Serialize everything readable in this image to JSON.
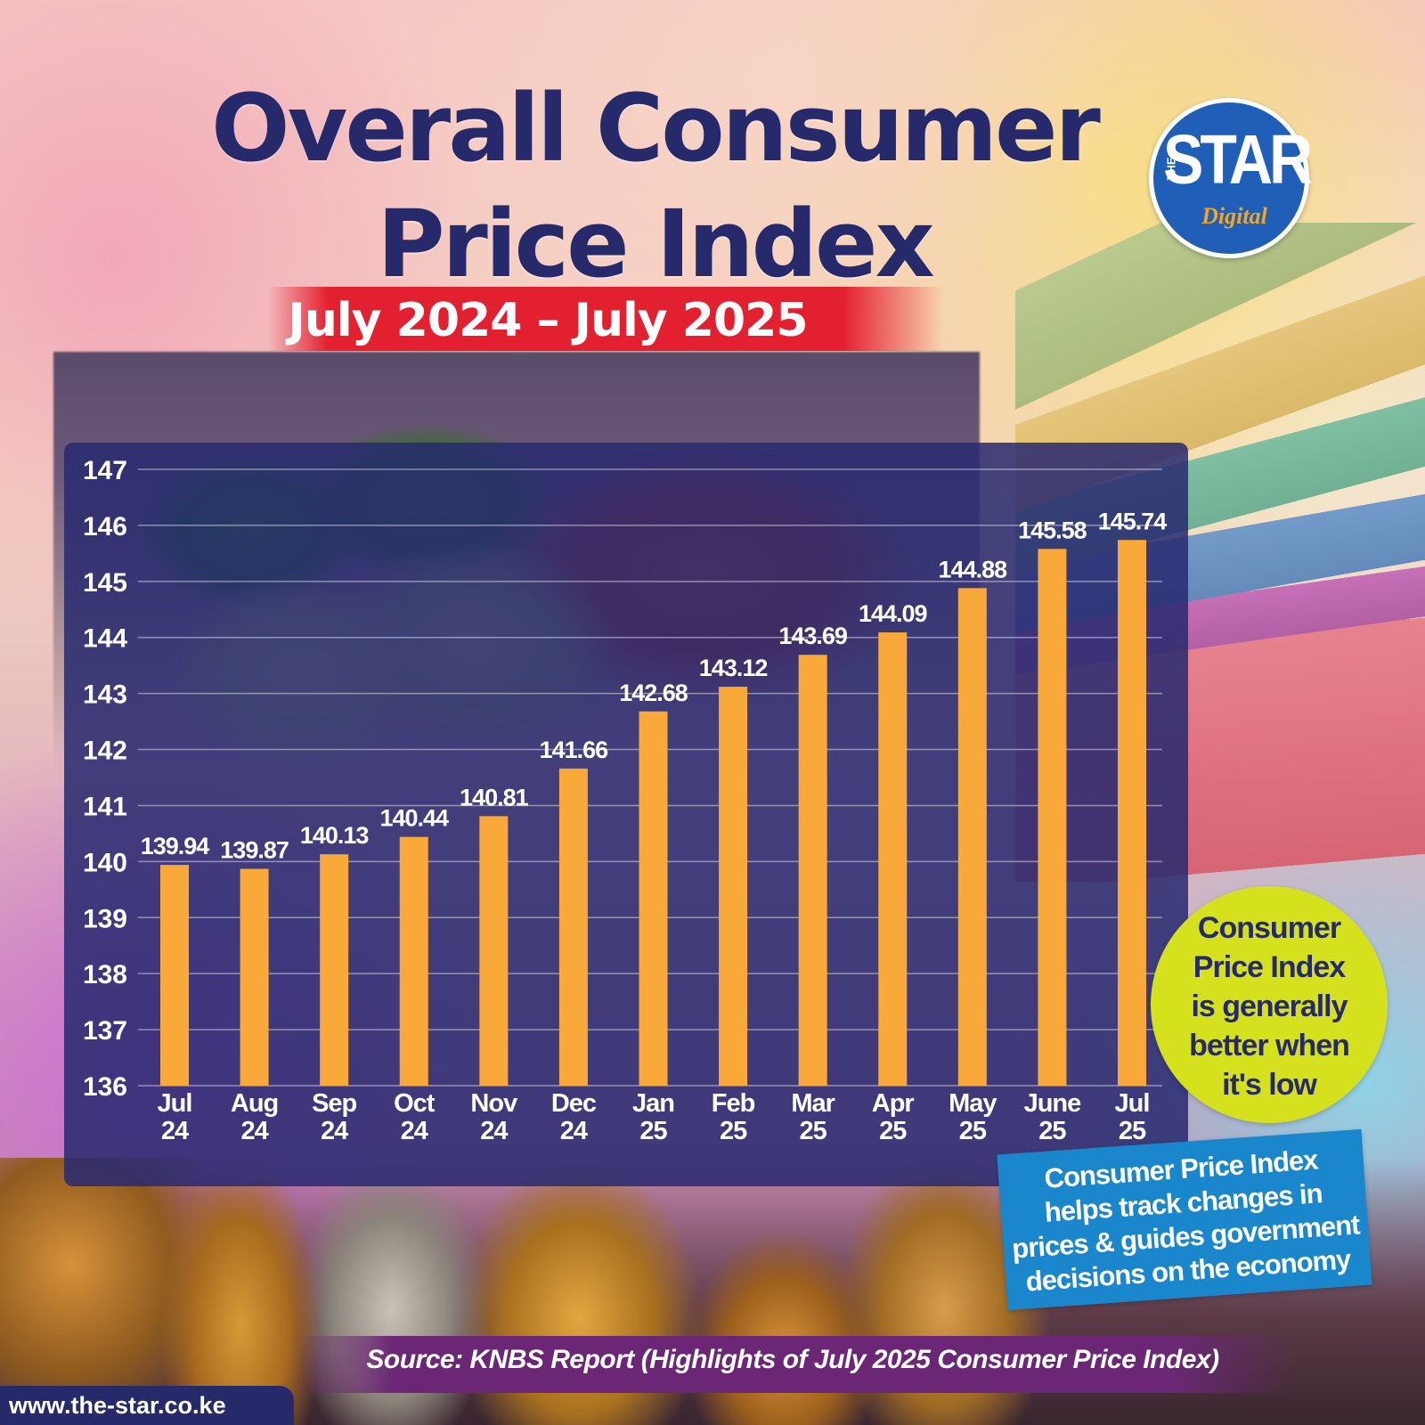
{
  "title_line_1": "Overall Consumer",
  "title_line_2": "Price Index",
  "date_range": "July 2024 – July 2025",
  "logo": {
    "the": "THE",
    "star": "STAR",
    "digital": "Digital"
  },
  "note_circle": {
    "lines": [
      "Consumer",
      "Price Index",
      "is generally",
      "better when",
      "it's low"
    ],
    "color": "#d6e11d"
  },
  "note_box": {
    "lines": [
      "Consumer Price Index",
      "helps track changes in",
      "prices & guides government",
      "decisions on the economy"
    ],
    "color": "#1a86cc"
  },
  "source": "Source: KNBS Report (Highlights of July 2025 Consumer Price Index)",
  "website": "www.the-star.co.ke",
  "colors": {
    "title": "#262a6a",
    "banner": "#e3202f",
    "panel": "#28286f",
    "bar": "#f9a93a"
  },
  "chart_data": {
    "type": "bar",
    "categories": [
      [
        "Jul",
        "24"
      ],
      [
        "Aug",
        "24"
      ],
      [
        "Sep",
        "24"
      ],
      [
        "Oct",
        "24"
      ],
      [
        "Nov",
        "24"
      ],
      [
        "Dec",
        "24"
      ],
      [
        "Jan",
        "25"
      ],
      [
        "Feb",
        "25"
      ],
      [
        "Mar",
        "25"
      ],
      [
        "Apr",
        "25"
      ],
      [
        "May",
        "25"
      ],
      [
        "June",
        "25"
      ],
      [
        "Jul",
        "25"
      ]
    ],
    "values": [
      139.94,
      139.87,
      140.13,
      140.44,
      140.81,
      141.66,
      142.68,
      143.12,
      143.69,
      144.09,
      144.88,
      145.58,
      145.74
    ],
    "value_labels": [
      "139.94",
      "139.87",
      "140.13",
      "140.44",
      "140.81",
      "141.66",
      "142.68",
      "143.12",
      "143.69",
      "144.09",
      "144.88",
      "145.58",
      "145.74"
    ],
    "title": "",
    "xlabel": "",
    "ylabel": "",
    "ylim": [
      136,
      147
    ],
    "yticks": [
      136,
      137,
      138,
      139,
      140,
      141,
      142,
      143,
      144,
      145,
      146,
      147
    ],
    "grid": true,
    "legend": "none"
  }
}
